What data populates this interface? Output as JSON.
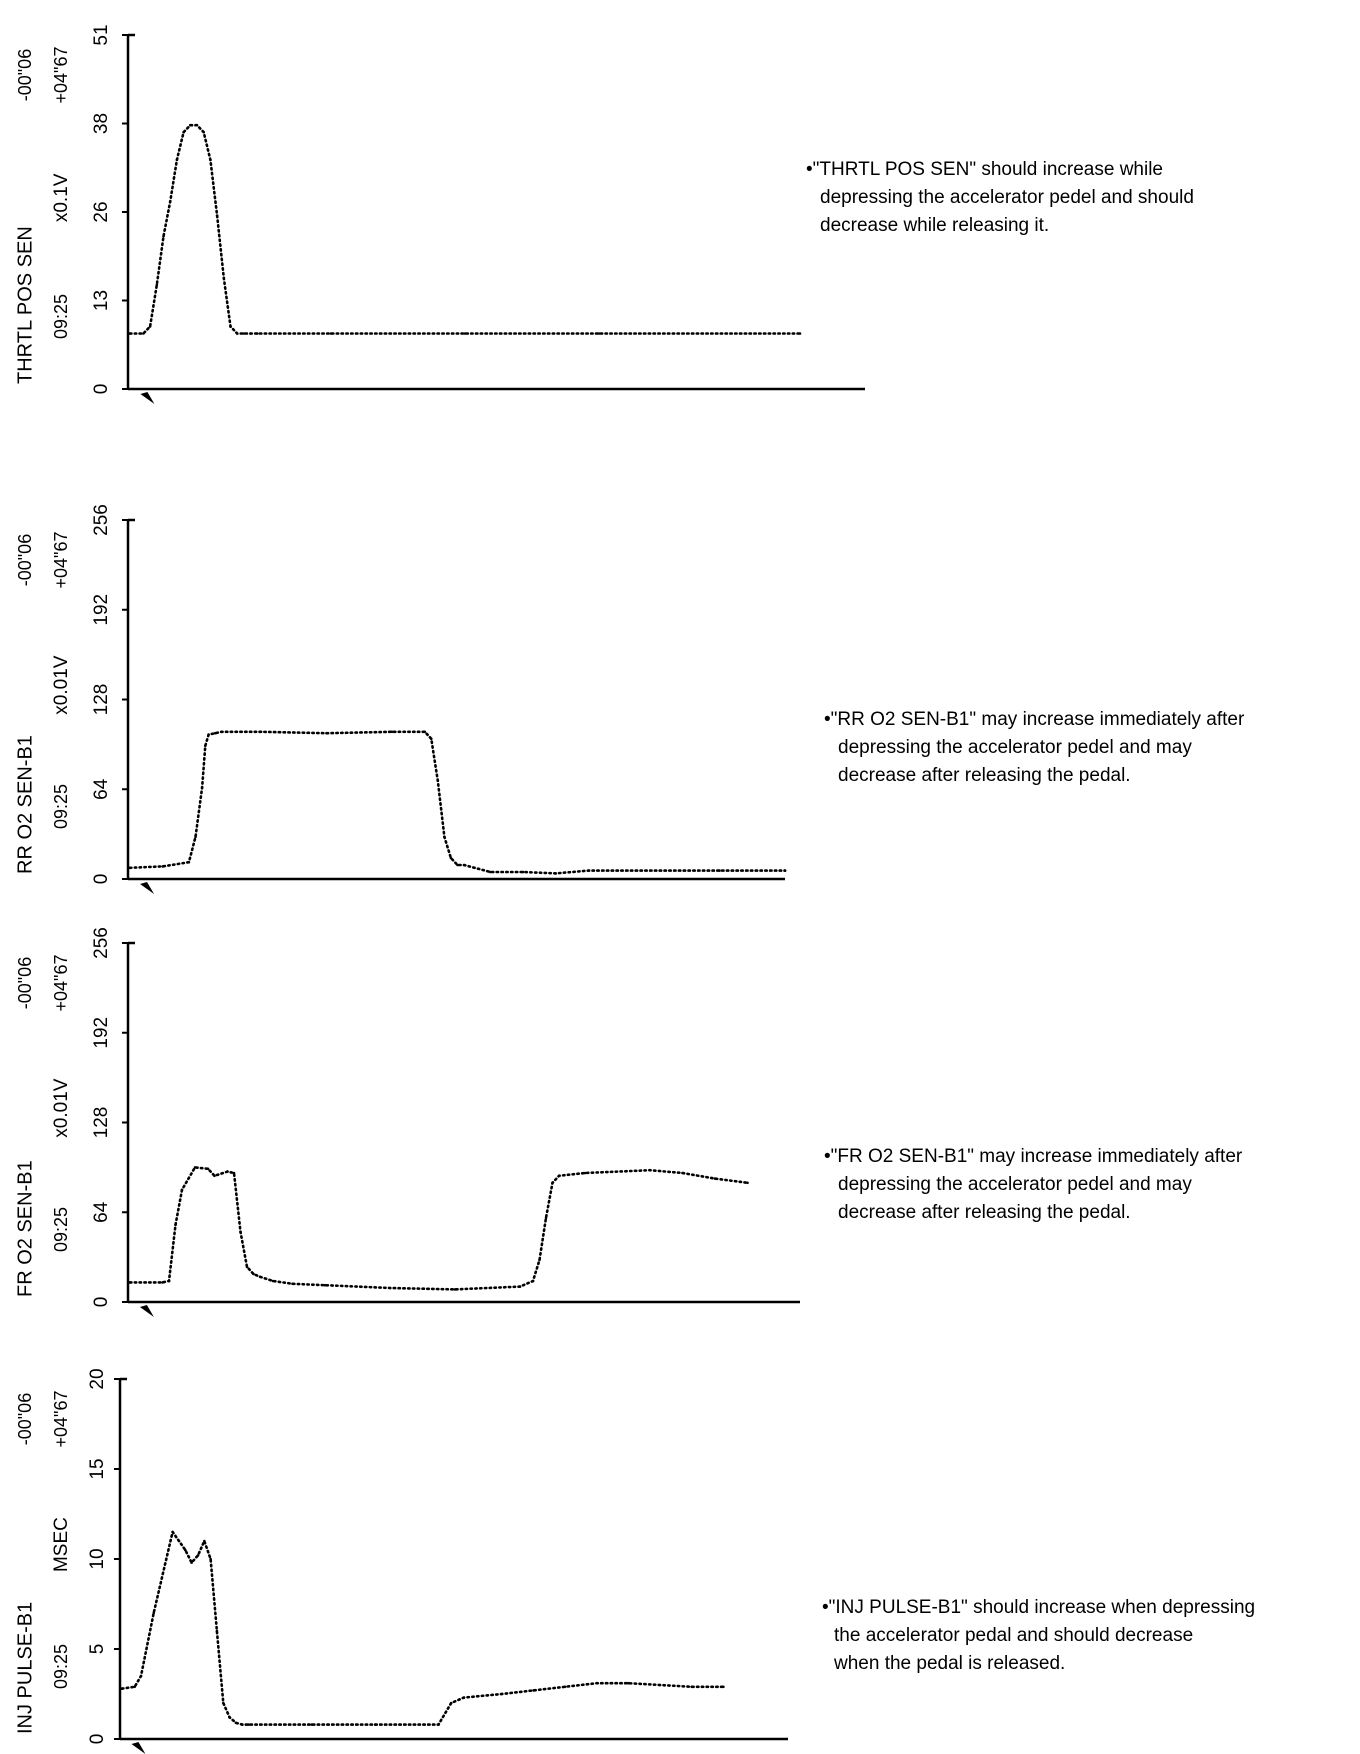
{
  "chart_data": [
    {
      "type": "line",
      "title": "THRTL POS SEN",
      "ylabel": "THRTL POS SEN",
      "unit": "x0.1V",
      "time_start": "-00\"06",
      "time_end": "+04\"67",
      "clock": "09:25",
      "ylim": [
        0,
        51
      ],
      "yticks": [
        "0",
        "13",
        "26",
        "38",
        "51"
      ],
      "xlim": [
        0,
        100
      ],
      "trigger_x": 2.6,
      "x": [
        0,
        2,
        3,
        4,
        5,
        6,
        7,
        8,
        9,
        10,
        11,
        12,
        13,
        14,
        15,
        16,
        17,
        18,
        19,
        30,
        50,
        70,
        100
      ],
      "values": [
        8,
        8,
        9,
        15,
        22,
        27,
        33,
        37,
        38,
        38,
        37,
        33,
        25,
        16,
        9,
        8,
        8,
        8,
        8,
        8,
        8,
        8,
        8
      ]
    },
    {
      "type": "line",
      "title": "RR O2 SEN-B1",
      "ylabel": "RR O2 SEN-B1",
      "unit": "x0.01V",
      "time_start": "-00\"06",
      "time_end": "+04\"67",
      "clock": "09:25",
      "ylim": [
        0,
        256
      ],
      "yticks": [
        "0",
        "64",
        "128",
        "192",
        "256"
      ],
      "xlim": [
        0,
        100
      ],
      "trigger_x": 2.6,
      "x": [
        0,
        5,
        9,
        10,
        11,
        11.5,
        12,
        13,
        14,
        20,
        30,
        40,
        45,
        46,
        47,
        48,
        49,
        50,
        51,
        55,
        60,
        65,
        70,
        90,
        100
      ],
      "values": [
        8,
        9,
        12,
        30,
        65,
        95,
        103,
        104,
        105,
        105,
        104,
        105,
        105,
        100,
        70,
        30,
        15,
        10,
        10,
        5,
        5,
        4,
        6,
        6,
        6
      ]
    },
    {
      "type": "line",
      "title": "FR O2 SEN-B1",
      "ylabel": "FR O2 SEN-B1",
      "unit": "x0.01V",
      "time_start": "-00\"06",
      "time_end": "+04\"67",
      "clock": "09:25",
      "ylim": [
        0,
        256
      ],
      "yticks": [
        "0",
        "64",
        "128",
        "192",
        "256"
      ],
      "xlim": [
        0,
        100
      ],
      "trigger_x": 2.6,
      "x": [
        0,
        5,
        6,
        7,
        8,
        10,
        12,
        13,
        15,
        16,
        17,
        18,
        19,
        20,
        22,
        25,
        30,
        40,
        50,
        60,
        62,
        63,
        64,
        65,
        66,
        70,
        80,
        85,
        90,
        95
      ],
      "values": [
        14,
        14,
        15,
        55,
        80,
        96,
        95,
        90,
        93,
        92,
        50,
        25,
        20,
        18,
        15,
        13,
        12,
        10,
        9,
        11,
        15,
        30,
        60,
        85,
        90,
        92,
        94,
        92,
        88,
        85
      ]
    },
    {
      "type": "line",
      "title": "INJ PULSE-B1",
      "ylabel": "INJ PULSE-B1",
      "unit": "MSEC",
      "time_start": "-00\"06",
      "time_end": "+04\"67",
      "clock": "09:25",
      "ylim": [
        0,
        20
      ],
      "yticks": [
        "0",
        "5",
        "10",
        "15",
        "20"
      ],
      "xlim": [
        0,
        100
      ],
      "trigger_x": 2.6,
      "x": [
        0,
        2,
        3,
        5,
        7,
        8,
        9,
        10,
        11,
        12,
        13,
        14,
        15,
        16,
        17,
        18,
        19,
        20,
        30,
        40,
        50,
        52,
        54,
        60,
        65,
        70,
        75,
        80,
        85,
        90,
        95
      ],
      "values": [
        2.8,
        2.9,
        3.5,
        7,
        10,
        11.5,
        11,
        10.5,
        9.8,
        10.2,
        11,
        10,
        6,
        2,
        1.2,
        0.9,
        0.8,
        0.8,
        0.8,
        0.8,
        0.8,
        2,
        2.3,
        2.5,
        2.7,
        2.9,
        3.1,
        3.1,
        3.0,
        2.9,
        2.9
      ]
    }
  ],
  "notes": [
    {
      "lines": [
        "•\"THRTL POS SEN\" should increase while",
        "depressing the accelerator pedel and should",
        "decrease while releasing it."
      ]
    },
    {
      "lines": [
        "•\"RR O2 SEN-B1\" may increase immediately after",
        "depressing the accelerator pedel and may",
        "decrease after releasing the pedal."
      ]
    },
    {
      "lines": [
        "•\"FR O2 SEN-B1\" may increase immediately after",
        "depressing the accelerator pedel and may",
        "decrease after releasing the pedal."
      ]
    },
    {
      "lines": [
        "•\"INJ PULSE-B1\" should increase when depressing",
        "the accelerator pedal and should decrease",
        "when the pedal is released."
      ]
    }
  ]
}
